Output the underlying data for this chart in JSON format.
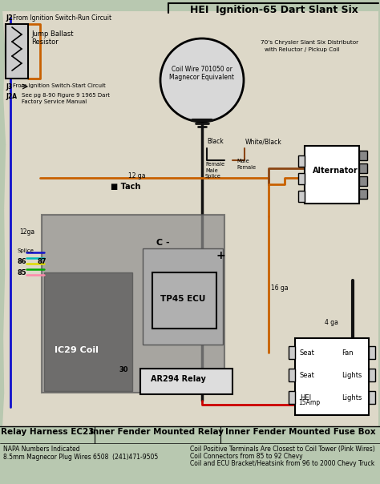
{
  "title": "HEI  Ignition-65 Dart Slant Six",
  "bg_color": "#b8c8b0",
  "paper_color": "#ddd8c8",
  "footer_labels": [
    "Relay Harness EC23",
    "Inner Fender Mounted Relay",
    "Inner Fender Mounted Fuse Box"
  ],
  "footnote_left1": "NAPA Numbers Indicated",
  "footnote_left2": "8.5mm Magnecor Plug Wires 6508  (241)471-9505",
  "footnote_right1": "Coil Positive Terminals Are Closest to Coil Tower (Pink Wires)",
  "footnote_right2": "Coil Connectors from 85 to 92 Chevy",
  "footnote_right3": "Coil and ECU Bracket/Heatsink from 96 to 2000 Chevy Truck",
  "blue": "#1010cc",
  "orange": "#c86000",
  "red": "#cc0000",
  "pink": "#ff88aa",
  "yellow": "#dddd00",
  "green": "#00aa00",
  "cyan": "#00bbbb",
  "black": "#111111",
  "white": "#ffffff",
  "gray": "#888888",
  "lgray": "#cccccc",
  "dgray": "#555555",
  "brown": "#8B4513"
}
